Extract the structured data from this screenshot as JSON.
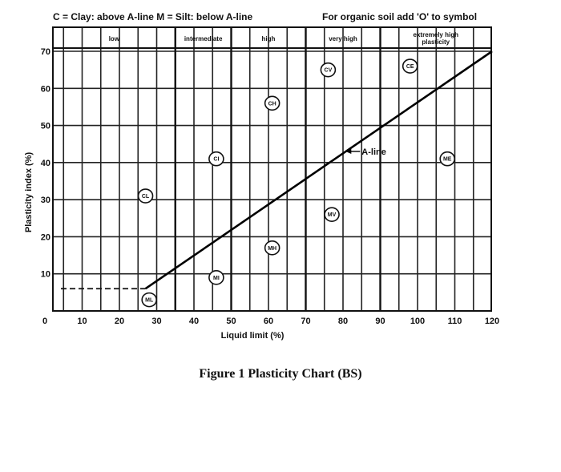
{
  "chart_data": {
    "type": "line",
    "title": "",
    "header_left": "C = Clay: above A-line   M = Silt: below A-line",
    "header_right": "For organic soil add 'O' to symbol",
    "xlabel": "Liquid limit (%)",
    "ylabel": "Plasticity index (%)",
    "xlim": [
      0,
      120
    ],
    "ylim": [
      0,
      70
    ],
    "x_ticks": [
      0,
      10,
      20,
      30,
      40,
      50,
      60,
      70,
      80,
      90,
      100,
      110,
      120
    ],
    "y_ticks": [
      10,
      20,
      30,
      40,
      50,
      60,
      70
    ],
    "grid": true,
    "zones": [
      {
        "label": "low",
        "from": 0,
        "to": 35
      },
      {
        "label": "intermediate",
        "from": 35,
        "to": 50
      },
      {
        "label": "high",
        "from": 50,
        "to": 70
      },
      {
        "label": "very high",
        "from": 70,
        "to": 90
      },
      {
        "label": "extremely high",
        "label2": "plasticity",
        "from": 90,
        "to": 120
      }
    ],
    "series": [
      {
        "name": "A-line",
        "x": [
          27,
          120
        ],
        "y": [
          6,
          70
        ]
      }
    ],
    "dashed_line": {
      "x": [
        0,
        27
      ],
      "y": [
        6,
        6
      ]
    },
    "annotation": {
      "text": "A-line",
      "x": 82,
      "y": 43
    },
    "symbols": [
      {
        "label": "CL",
        "x": 27,
        "y": 31
      },
      {
        "label": "ML",
        "x": 28,
        "y": 3
      },
      {
        "label": "CI",
        "x": 46,
        "y": 41
      },
      {
        "label": "MI",
        "x": 46,
        "y": 9
      },
      {
        "label": "CH",
        "x": 61,
        "y": 56
      },
      {
        "label": "MH",
        "x": 61,
        "y": 17
      },
      {
        "label": "CV",
        "x": 76,
        "y": 65
      },
      {
        "label": "MV",
        "x": 77,
        "y": 26
      },
      {
        "label": "CE",
        "x": 98,
        "y": 66
      },
      {
        "label": "ME",
        "x": 108,
        "y": 41
      }
    ]
  },
  "caption": "Figure 1 Plasticity Chart (BS)"
}
